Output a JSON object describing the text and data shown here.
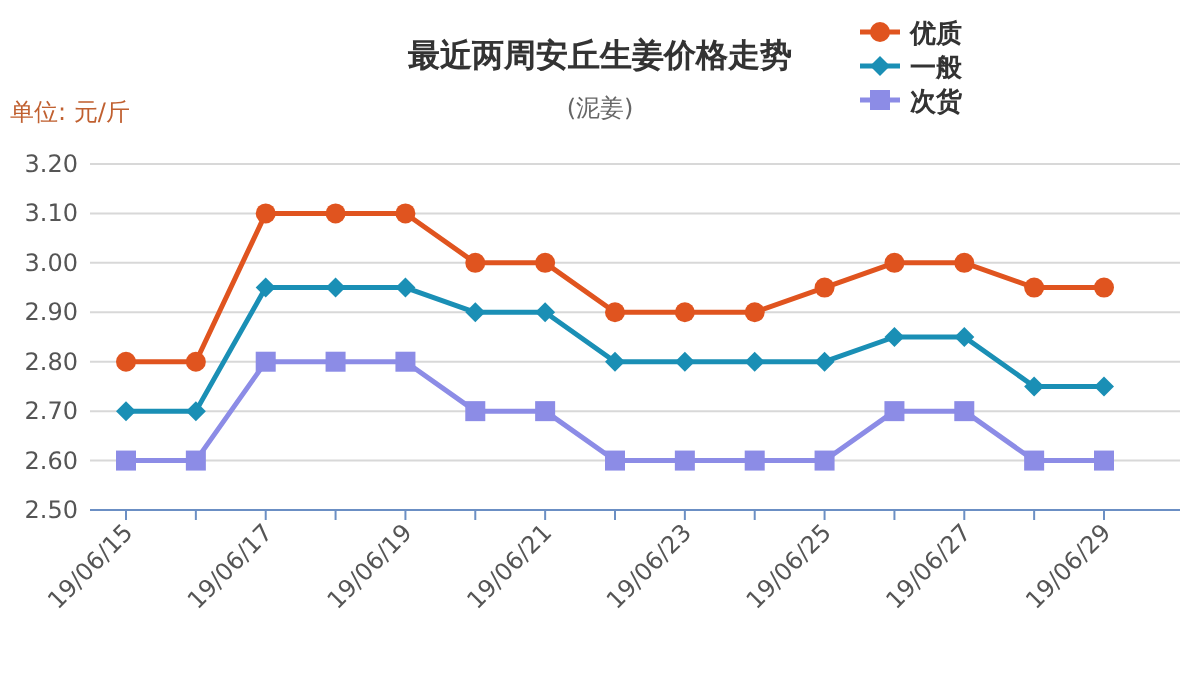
{
  "chart_data": {
    "type": "line",
    "title": "最近两周安丘生姜价格走势",
    "subtitle": "(泥姜)",
    "ylabel": "单位: 元/斤",
    "categories": [
      "19/06/15",
      null,
      "19/06/17",
      null,
      "19/06/19",
      null,
      "19/06/21",
      null,
      "19/06/23",
      null,
      "19/06/25",
      null,
      "19/06/27",
      null,
      "19/06/29"
    ],
    "series": [
      {
        "name": "优质",
        "color": "#e0541f",
        "marker": "circle",
        "values": [
          2.8,
          2.8,
          3.1,
          3.1,
          3.1,
          3.0,
          3.0,
          2.9,
          2.9,
          2.9,
          2.95,
          3.0,
          3.0,
          2.95,
          2.95
        ]
      },
      {
        "name": "一般",
        "color": "#1a8fb5",
        "marker": "diamond",
        "values": [
          2.7,
          2.7,
          2.95,
          2.95,
          2.95,
          2.9,
          2.9,
          2.8,
          2.8,
          2.8,
          2.8,
          2.85,
          2.85,
          2.75,
          2.75
        ]
      },
      {
        "name": "次货",
        "color": "#8c8ce6",
        "marker": "square",
        "values": [
          2.6,
          2.6,
          2.8,
          2.8,
          2.8,
          2.7,
          2.7,
          2.6,
          2.6,
          2.6,
          2.6,
          2.7,
          2.7,
          2.6,
          2.6
        ]
      }
    ],
    "ylim": [
      2.5,
      3.2
    ],
    "yticks": [
      {
        "value": 2.5,
        "label": "2.50"
      },
      {
        "value": 2.6,
        "label": "2.60"
      },
      {
        "value": 2.7,
        "label": "2.70"
      },
      {
        "value": 2.8,
        "label": "2.80"
      },
      {
        "value": 2.9,
        "label": "2.90"
      },
      {
        "value": 3.0,
        "label": "3.00"
      },
      {
        "value": 3.1,
        "label": "3.10"
      },
      {
        "value": 3.2,
        "label": "3.20"
      }
    ],
    "grid": "y",
    "legend": "top right"
  }
}
